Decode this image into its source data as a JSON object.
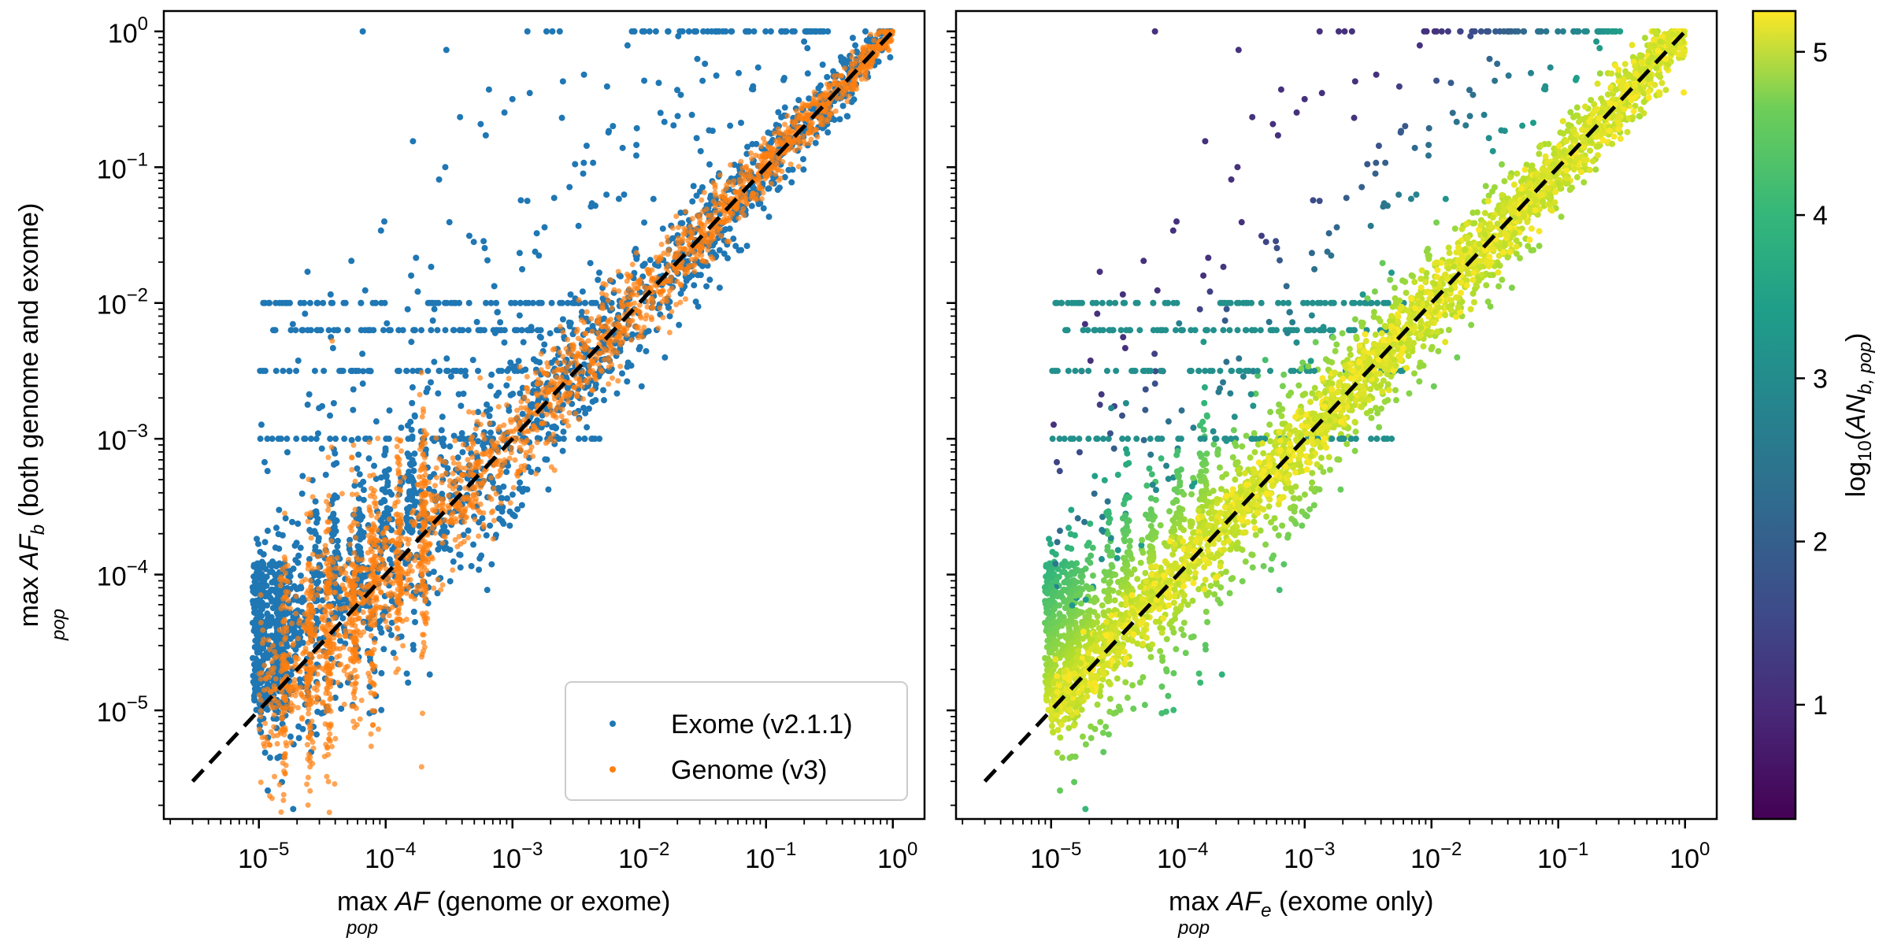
{
  "chart_data": [
    {
      "type": "scatter",
      "panel": "left",
      "xscale": "log",
      "yscale": "log",
      "xlim": [
        1e-06,
        1
      ],
      "ylim": [
        1e-06,
        1
      ],
      "xticks": [
        "10^-5",
        "10^-4",
        "10^-3",
        "10^-2",
        "10^-1",
        "10^0"
      ],
      "yticks": [
        "10^-5",
        "10^-4",
        "10^-3",
        "10^-2",
        "10^-1",
        "10^0"
      ],
      "xlabel": {
        "max": "max",
        "sub": "pop",
        "var": "AF",
        "var_sub": "",
        "rest": " (genome or exome)"
      },
      "ylabel": {
        "max": "max",
        "sub": "pop",
        "var": "AF",
        "var_sub": "b",
        "rest": " (both genome and exome)"
      },
      "legend": {
        "placement": "lower-right"
      },
      "reference_line": {
        "style": "dashed",
        "color": "#000000",
        "from": [
          3e-06,
          3e-06
        ],
        "to": [
          1,
          1
        ]
      },
      "series": [
        {
          "name": "Exome (v2.1.1)",
          "color": "#1f77b4"
        },
        {
          "name": "Genome (v3)",
          "color": "#ff7f0e"
        }
      ]
    },
    {
      "type": "scatter",
      "panel": "right",
      "xscale": "log",
      "yscale": "log",
      "xlim": [
        1e-06,
        1
      ],
      "ylim": [
        1e-06,
        1
      ],
      "xticks": [
        "10^-5",
        "10^-4",
        "10^-3",
        "10^-2",
        "10^-1",
        "10^0"
      ],
      "xlabel": {
        "max": "max",
        "sub": "pop",
        "var": "AF",
        "var_sub": "e",
        "rest": " (exome only)"
      },
      "reference_line": {
        "style": "dashed",
        "color": "#000000",
        "from": [
          3e-06,
          3e-06
        ],
        "to": [
          1,
          1
        ]
      },
      "colorbar": {
        "colormap": "viridis",
        "range": [
          0.3,
          5.25
        ],
        "ticks": [
          "1",
          "2",
          "3",
          "4",
          "5"
        ],
        "label": {
          "prefix": "log",
          "prefix_sub": "10",
          "var": "AN",
          "var_sub": "b, pop"
        }
      }
    }
  ]
}
